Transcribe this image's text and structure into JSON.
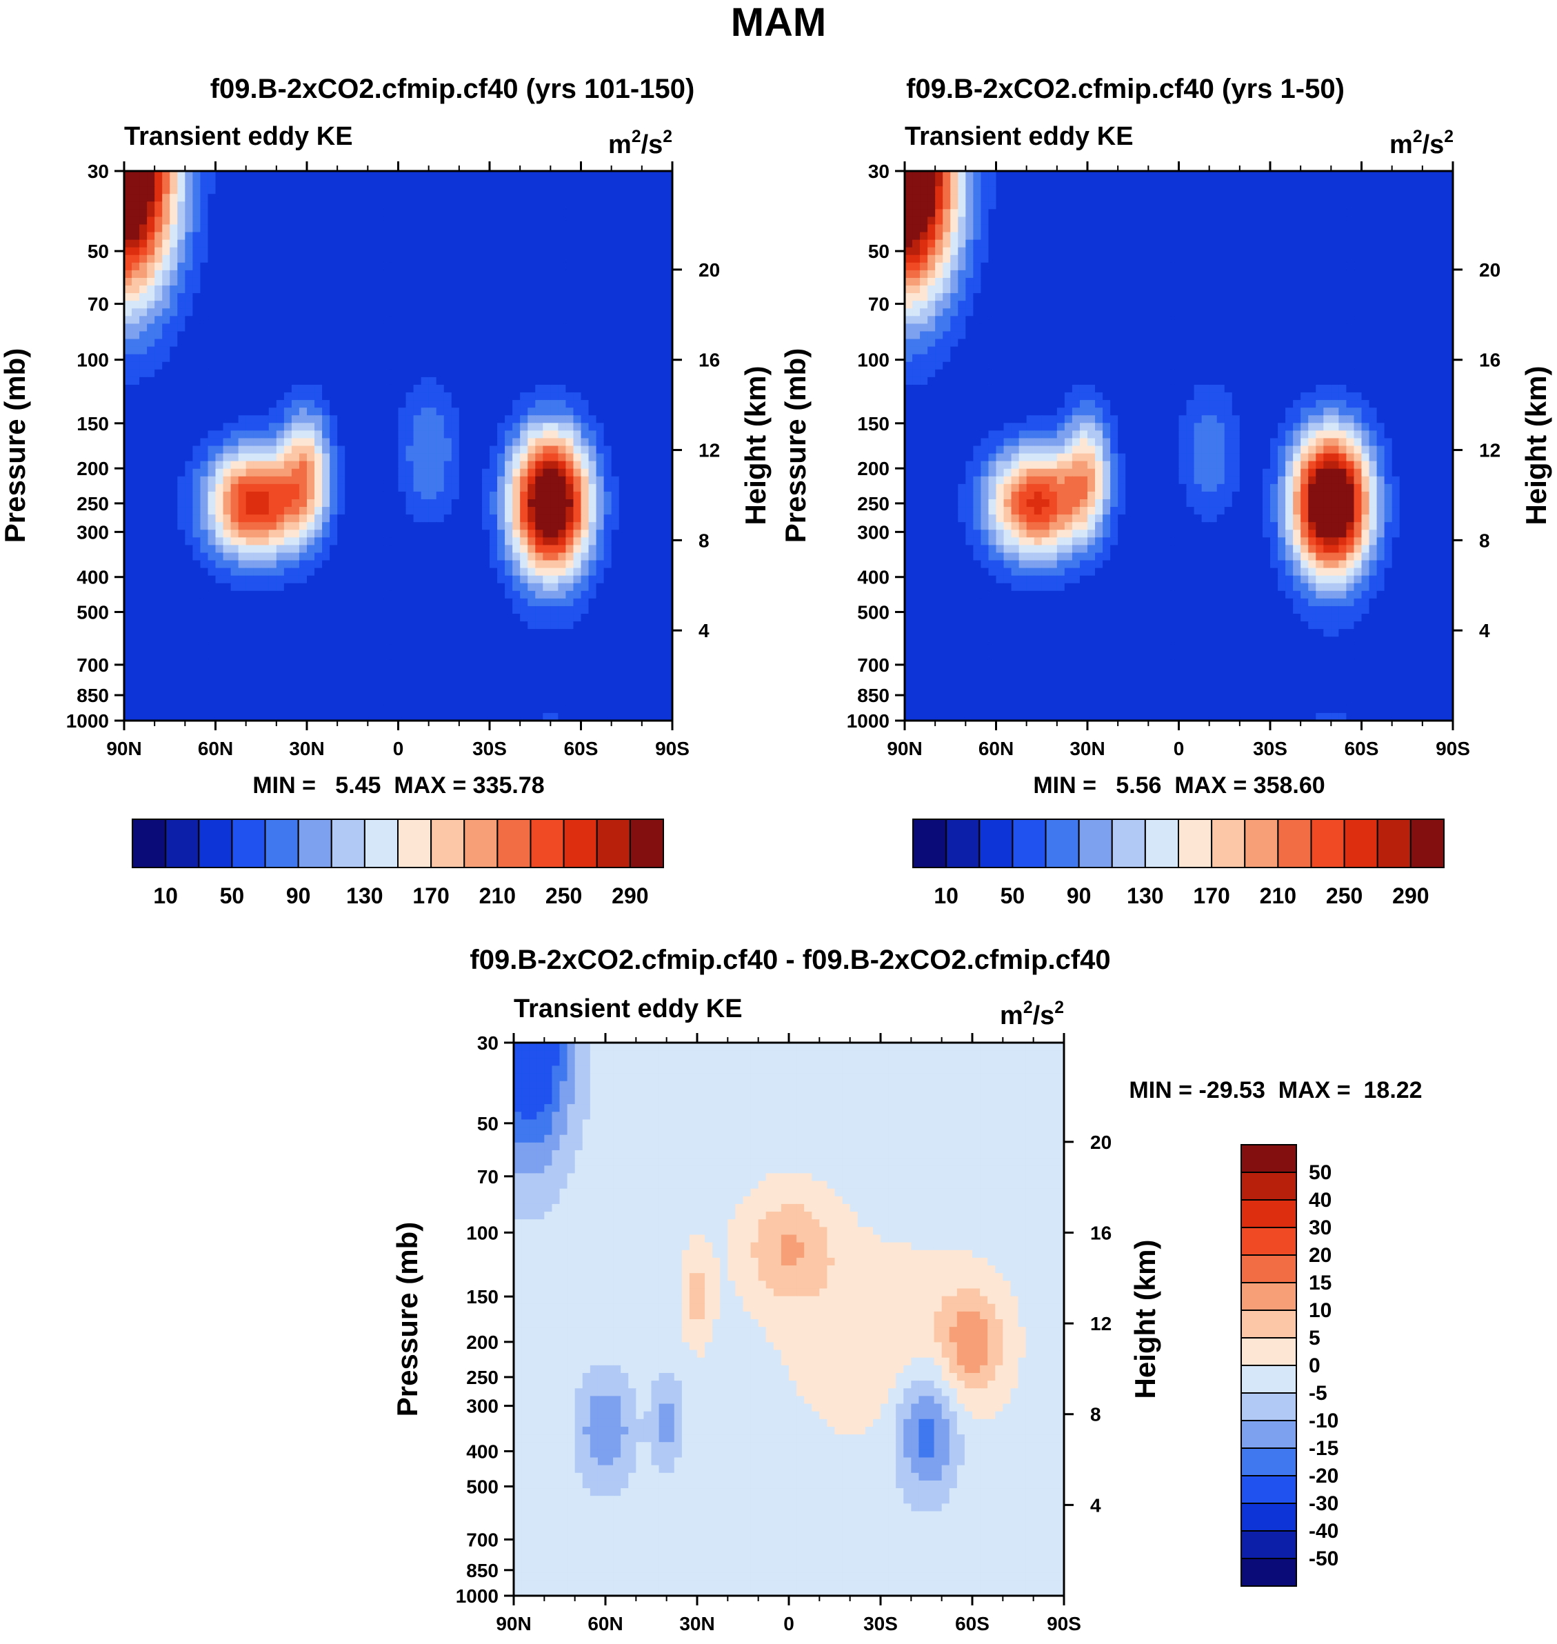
{
  "figure_title": "MAM",
  "colors": {
    "abs_scale": [
      "#0a0a78",
      "#0c1fa8",
      "#0d34d6",
      "#1f52ef",
      "#3f78ef",
      "#7da0ef",
      "#b0c9f5",
      "#d6e7f9",
      "#fde7d4",
      "#fbc7a6",
      "#f7a078",
      "#f26d44",
      "#ef4a24",
      "#dd2f10",
      "#b8200c",
      "#830f0f"
    ],
    "diff_scale": [
      "#0a0a78",
      "#0c1fa8",
      "#0d34d6",
      "#1f52ef",
      "#3f78ef",
      "#7da0ef",
      "#b0c9f5",
      "#d6e7f9",
      "#fde7d4",
      "#fbc7a6",
      "#f7a078",
      "#f26d44",
      "#ef4a24",
      "#dd2f10",
      "#b8200c",
      "#830f0f"
    ]
  },
  "chart_data": [
    {
      "id": "panel-a",
      "type": "contour",
      "title": "f09.B-2xCO2.cfmip.cf40 (yrs 101-150)",
      "left_label": "Transient eddy KE",
      "units": "m²/s²",
      "units_base": "m",
      "units_exp1": "2",
      "units_mid": "/s",
      "units_exp2": "2",
      "ylabel": "Pressure (mb)",
      "y2label": "Height (km)",
      "y_ticks": [
        "30",
        "50",
        "70",
        "100",
        "150",
        "200",
        "250",
        "300",
        "400",
        "500",
        "700",
        "850",
        "1000"
      ],
      "y_tick_values": [
        30,
        50,
        70,
        100,
        150,
        200,
        250,
        300,
        400,
        500,
        700,
        850,
        1000
      ],
      "y2_ticks": [
        "20",
        "16",
        "12",
        "8",
        "4"
      ],
      "y2_tick_values": [
        20,
        16,
        12,
        8,
        4
      ],
      "x_ticks": [
        "90N",
        "60N",
        "30N",
        "0",
        "30S",
        "60S",
        "90S"
      ],
      "x_tick_values": [
        90,
        60,
        30,
        0,
        -30,
        -60,
        -90
      ],
      "min_label": "MIN =   5.45  MAX = 335.78",
      "min": 5.45,
      "max": 335.78,
      "colorbar_labels": [
        "10",
        "50",
        "90",
        "130",
        "170",
        "210",
        "250",
        "290"
      ],
      "levels": [
        10,
        30,
        50,
        70,
        90,
        110,
        130,
        150,
        170,
        190,
        210,
        230,
        250,
        270,
        290
      ],
      "features": [
        {
          "lat": 90,
          "p": 30,
          "amp": 360,
          "slat": 17,
          "sz": 0.8
        },
        {
          "lat": -50,
          "p": 250,
          "amp": 330,
          "slat": 13,
          "sz": 0.45
        },
        {
          "lat": 47,
          "p": 250,
          "amp": 235,
          "slat": 16,
          "sz": 0.35
        },
        {
          "lat": 30,
          "p": 200,
          "amp": 130,
          "slat": 8,
          "sz": 0.4
        },
        {
          "lat": -10,
          "p": 180,
          "amp": 60,
          "slat": 10,
          "sz": 0.45
        }
      ]
    },
    {
      "id": "panel-b",
      "type": "contour",
      "title": "f09.B-2xCO2.cfmip.cf40 (yrs 1-50)",
      "left_label": "Transient eddy KE",
      "units": "m²/s²",
      "units_base": "m",
      "units_exp1": "2",
      "units_mid": "/s",
      "units_exp2": "2",
      "ylabel": "Pressure (mb)",
      "y2label": "Height (km)",
      "y_ticks": [
        "30",
        "50",
        "70",
        "100",
        "150",
        "200",
        "250",
        "300",
        "400",
        "500",
        "700",
        "850",
        "1000"
      ],
      "y_tick_values": [
        30,
        50,
        70,
        100,
        150,
        200,
        250,
        300,
        400,
        500,
        700,
        850,
        1000
      ],
      "y2_ticks": [
        "20",
        "16",
        "12",
        "8",
        "4"
      ],
      "y2_tick_values": [
        20,
        16,
        12,
        8,
        4
      ],
      "x_ticks": [
        "90N",
        "60N",
        "30N",
        "0",
        "30S",
        "60S",
        "90S"
      ],
      "x_tick_values": [
        90,
        60,
        30,
        0,
        -30,
        -60,
        -90
      ],
      "min_label": "MIN =   5.56  MAX = 358.60",
      "min": 5.56,
      "max": 358.6,
      "colorbar_labels": [
        "10",
        "50",
        "90",
        "130",
        "170",
        "210",
        "250",
        "290"
      ],
      "levels": [
        10,
        30,
        50,
        70,
        90,
        110,
        130,
        150,
        170,
        190,
        210,
        230,
        250,
        270,
        290
      ],
      "features": [
        {
          "lat": 90,
          "p": 30,
          "amp": 380,
          "slat": 17,
          "sz": 0.8
        },
        {
          "lat": -50,
          "p": 250,
          "amp": 345,
          "slat": 13,
          "sz": 0.45
        },
        {
          "lat": 47,
          "p": 250,
          "amp": 225,
          "slat": 16,
          "sz": 0.35
        },
        {
          "lat": 30,
          "p": 200,
          "amp": 120,
          "slat": 8,
          "sz": 0.4
        },
        {
          "lat": -10,
          "p": 180,
          "amp": 55,
          "slat": 10,
          "sz": 0.45
        }
      ]
    },
    {
      "id": "panel-c",
      "type": "contour",
      "title": "f09.B-2xCO2.cfmip.cf40 - f09.B-2xCO2.cfmip.cf40",
      "left_label": "Transient eddy KE",
      "units": "m²/s²",
      "units_base": "m",
      "units_exp1": "2",
      "units_mid": "/s",
      "units_exp2": "2",
      "ylabel": "Pressure (mb)",
      "y2label": "Height (km)",
      "y_ticks": [
        "30",
        "50",
        "70",
        "100",
        "150",
        "200",
        "250",
        "300",
        "400",
        "500",
        "700",
        "850",
        "1000"
      ],
      "y_tick_values": [
        30,
        50,
        70,
        100,
        150,
        200,
        250,
        300,
        400,
        500,
        700,
        850,
        1000
      ],
      "y2_ticks": [
        "20",
        "16",
        "12",
        "8",
        "4"
      ],
      "y2_tick_values": [
        20,
        16,
        12,
        8,
        4
      ],
      "x_ticks": [
        "90N",
        "60N",
        "30N",
        "0",
        "30S",
        "60S",
        "90S"
      ],
      "x_tick_values": [
        90,
        60,
        30,
        0,
        -30,
        -60,
        -90
      ],
      "min_label": "MIN = -29.53  MAX =  18.22",
      "min": -29.53,
      "max": 18.22,
      "colorbar_labels": [
        "50",
        "40",
        "30",
        "20",
        "15",
        "10",
        "5",
        "0",
        "-5",
        "-10",
        "-15",
        "-20",
        "-30",
        "-40",
        "-50"
      ],
      "levels": [
        -50,
        -40,
        -30,
        -20,
        -15,
        -10,
        -5,
        0,
        5,
        10,
        15,
        20,
        30,
        40,
        50
      ],
      "features": [
        {
          "lat": 85,
          "p": 30,
          "amp": -28,
          "slat": 14,
          "sz": 0.75
        },
        {
          "lat": 60,
          "p": 350,
          "amp": -13,
          "slat": 9,
          "sz": 0.35
        },
        {
          "lat": 40,
          "p": 330,
          "amp": -10,
          "slat": 5,
          "sz": 0.3
        },
        {
          "lat": -45,
          "p": 350,
          "amp": -17,
          "slat": 10,
          "sz": 0.4
        },
        {
          "lat": 0,
          "p": 110,
          "amp": 12,
          "slat": 15,
          "sz": 0.35
        },
        {
          "lat": 30,
          "p": 150,
          "amp": 9,
          "slat": 5,
          "sz": 0.3
        },
        {
          "lat": -60,
          "p": 200,
          "amp": 14,
          "slat": 11,
          "sz": 0.35
        },
        {
          "lat": -30,
          "p": 200,
          "amp": 6,
          "slat": 30,
          "sz": 0.6
        }
      ]
    }
  ]
}
